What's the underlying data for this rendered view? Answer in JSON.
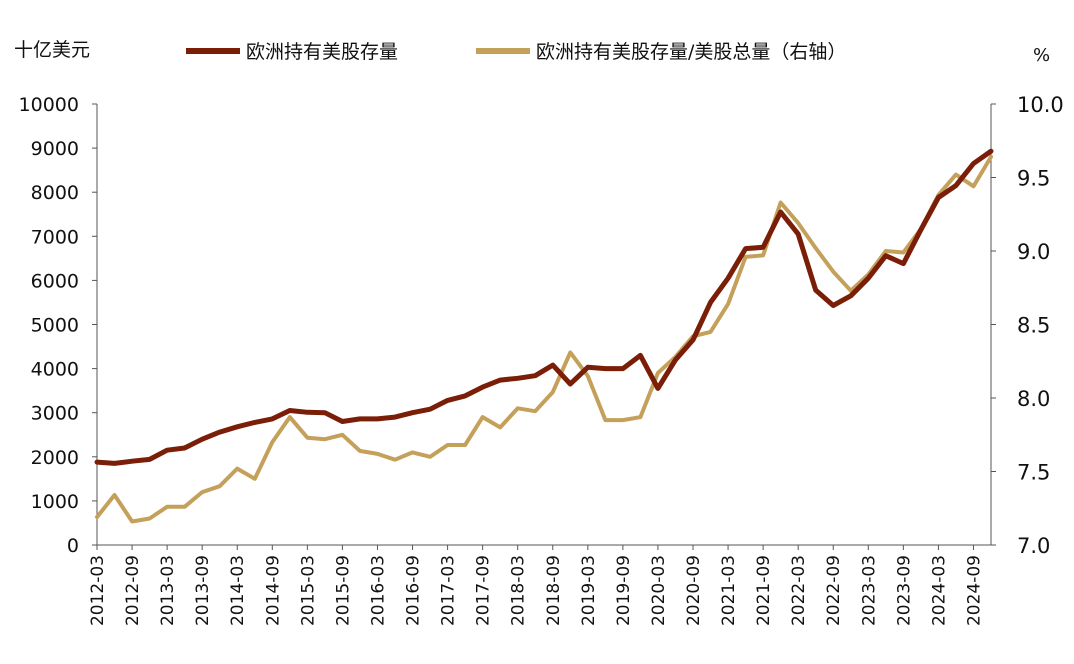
{
  "chart_data": {
    "type": "line",
    "left_unit": "十亿美元",
    "right_unit": "%",
    "ylim_left": [
      0,
      10000
    ],
    "ylim_right": [
      7.0,
      10.0
    ],
    "yticks_left": [
      "0",
      "1000",
      "2000",
      "3000",
      "4000",
      "5000",
      "6000",
      "7000",
      "8000",
      "9000",
      "10000"
    ],
    "yticks_right": [
      "7.0",
      "7.5",
      "8.0",
      "8.5",
      "9.0",
      "9.5",
      "10.0"
    ],
    "x_tick_labels": [
      "2012-03",
      "2012-09",
      "2013-03",
      "2013-09",
      "2014-03",
      "2014-09",
      "2015-03",
      "2015-09",
      "2016-03",
      "2016-09",
      "2017-03",
      "2017-09",
      "2018-03",
      "2018-09",
      "2019-03",
      "2019-09",
      "2020-03",
      "2020-09",
      "2021-03",
      "2021-09",
      "2022-03",
      "2022-09",
      "2023-03",
      "2023-09",
      "2024-03",
      "2024-09"
    ],
    "legend_position": "top",
    "grid": false,
    "series": [
      {
        "name": "欧洲持有美股存量",
        "axis": "left",
        "color": "#7a1e08",
        "x": [
          "2012-03",
          "2012-06",
          "2012-09",
          "2012-12",
          "2013-03",
          "2013-06",
          "2013-09",
          "2013-12",
          "2014-03",
          "2014-06",
          "2014-09",
          "2014-12",
          "2015-03",
          "2015-06",
          "2015-09",
          "2015-12",
          "2016-03",
          "2016-06",
          "2016-09",
          "2016-12",
          "2017-03",
          "2017-06",
          "2017-09",
          "2017-12",
          "2018-03",
          "2018-06",
          "2018-09",
          "2018-12",
          "2019-03",
          "2019-06",
          "2019-09",
          "2019-12",
          "2020-03",
          "2020-06",
          "2020-09",
          "2020-12",
          "2021-03",
          "2021-06",
          "2021-09",
          "2021-12",
          "2022-03",
          "2022-06",
          "2022-09",
          "2022-12",
          "2023-03",
          "2023-06",
          "2023-09",
          "2023-12",
          "2024-03",
          "2024-06",
          "2024-09",
          "2024-12"
        ],
        "values": [
          1880,
          1850,
          1900,
          1940,
          2150,
          2200,
          2400,
          2560,
          2680,
          2780,
          2860,
          3050,
          3010,
          3000,
          2800,
          2860,
          2860,
          2900,
          3000,
          3080,
          3280,
          3380,
          3580,
          3740,
          3780,
          3840,
          4080,
          3650,
          4030,
          4000,
          4000,
          4300,
          3550,
          4200,
          4650,
          5500,
          6050,
          6720,
          6750,
          7550,
          7050,
          5780,
          5430,
          5650,
          6050,
          6560,
          6380,
          7150,
          7880,
          8150,
          8650,
          8930
        ]
      },
      {
        "name": "欧洲持有美股存量/美股总量（右轴）",
        "axis": "right",
        "color": "#c4a05a",
        "x": [
          "2012-03",
          "2012-06",
          "2012-09",
          "2012-12",
          "2013-03",
          "2013-06",
          "2013-09",
          "2013-12",
          "2014-03",
          "2014-06",
          "2014-09",
          "2014-12",
          "2015-03",
          "2015-06",
          "2015-09",
          "2015-12",
          "2016-03",
          "2016-06",
          "2016-09",
          "2016-12",
          "2017-03",
          "2017-06",
          "2017-09",
          "2017-12",
          "2018-03",
          "2018-06",
          "2018-09",
          "2018-12",
          "2019-03",
          "2019-06",
          "2019-09",
          "2019-12",
          "2020-03",
          "2020-06",
          "2020-09",
          "2020-12",
          "2021-03",
          "2021-06",
          "2021-09",
          "2021-12",
          "2022-03",
          "2022-06",
          "2022-09",
          "2022-12",
          "2023-03",
          "2023-06",
          "2023-09",
          "2023-12",
          "2024-03",
          "2024-06",
          "2024-09",
          "2024-12"
        ],
        "values": [
          7.19,
          7.34,
          7.16,
          7.18,
          7.26,
          7.26,
          7.36,
          7.4,
          7.52,
          7.45,
          7.7,
          7.87,
          7.73,
          7.72,
          7.75,
          7.64,
          7.62,
          7.58,
          7.63,
          7.6,
          7.68,
          7.68,
          7.87,
          7.8,
          7.93,
          7.91,
          8.04,
          8.31,
          8.15,
          7.85,
          7.85,
          7.87,
          8.17,
          8.28,
          8.42,
          8.45,
          8.64,
          8.96,
          8.97,
          9.33,
          9.19,
          9.02,
          8.86,
          8.73,
          8.84,
          9.0,
          8.99,
          9.15,
          9.38,
          9.52,
          9.44,
          9.64
        ]
      }
    ]
  }
}
